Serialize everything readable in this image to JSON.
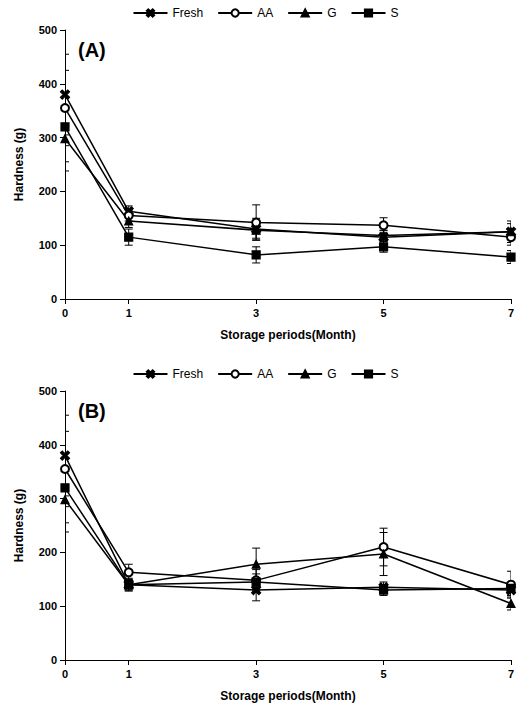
{
  "chart_data": [
    {
      "type": "line",
      "annotation": "(A)",
      "x_label": "Storage periods(Month)",
      "y_label": "Hardness (g)",
      "x": [
        0,
        1,
        3,
        5,
        7
      ],
      "xlim": [
        0,
        7
      ],
      "xticks": [
        0,
        1,
        3,
        5,
        7
      ],
      "ylim": [
        0,
        500
      ],
      "yticks": [
        0,
        100,
        200,
        300,
        400,
        500
      ],
      "grid": false,
      "legend": "top",
      "series": [
        {
          "name": "Fresh",
          "color": "#000000",
          "marker": "x",
          "values": [
            380,
            163,
            130,
            115,
            125
          ],
          "errors": [
            75,
            10,
            20,
            12,
            20
          ]
        },
        {
          "name": "AA",
          "color": "#000000",
          "marker": "circle_open",
          "values": [
            355,
            155,
            142,
            137,
            115
          ],
          "errors": [
            70,
            10,
            33,
            14,
            15
          ]
        },
        {
          "name": "G",
          "color": "#000000",
          "marker": "triangle",
          "values": [
            298,
            145,
            128,
            118,
            125
          ],
          "errors": [
            60,
            12,
            15,
            10,
            15
          ]
        },
        {
          "name": "S",
          "color": "#000000",
          "marker": "square",
          "values": [
            320,
            115,
            82,
            97,
            78
          ],
          "errors": [
            65,
            15,
            15,
            10,
            12
          ]
        }
      ]
    },
    {
      "type": "line",
      "annotation": "(B)",
      "x_label": "Storage periods(Month)",
      "y_label": "Hardness (g)",
      "x": [
        0,
        1,
        3,
        5,
        7
      ],
      "xlim": [
        0,
        7
      ],
      "xticks": [
        0,
        1,
        3,
        5,
        7
      ],
      "ylim": [
        0,
        500
      ],
      "yticks": [
        0,
        100,
        200,
        300,
        400,
        500
      ],
      "grid": false,
      "legend": "top",
      "series": [
        {
          "name": "Fresh",
          "color": "#000000",
          "marker": "x",
          "values": [
            380,
            140,
            130,
            135,
            130
          ],
          "errors": [
            75,
            10,
            20,
            10,
            10
          ]
        },
        {
          "name": "AA",
          "color": "#000000",
          "marker": "circle_open",
          "values": [
            355,
            163,
            148,
            210,
            140
          ],
          "errors": [
            70,
            15,
            20,
            35,
            25
          ]
        },
        {
          "name": "G",
          "color": "#000000",
          "marker": "triangle",
          "values": [
            298,
            140,
            178,
            197,
            105
          ],
          "errors": [
            60,
            10,
            30,
            40,
            12
          ]
        },
        {
          "name": "S",
          "color": "#000000",
          "marker": "square",
          "values": [
            320,
            140,
            145,
            130,
            133
          ],
          "errors": [
            65,
            12,
            15,
            10,
            10
          ]
        }
      ]
    }
  ]
}
